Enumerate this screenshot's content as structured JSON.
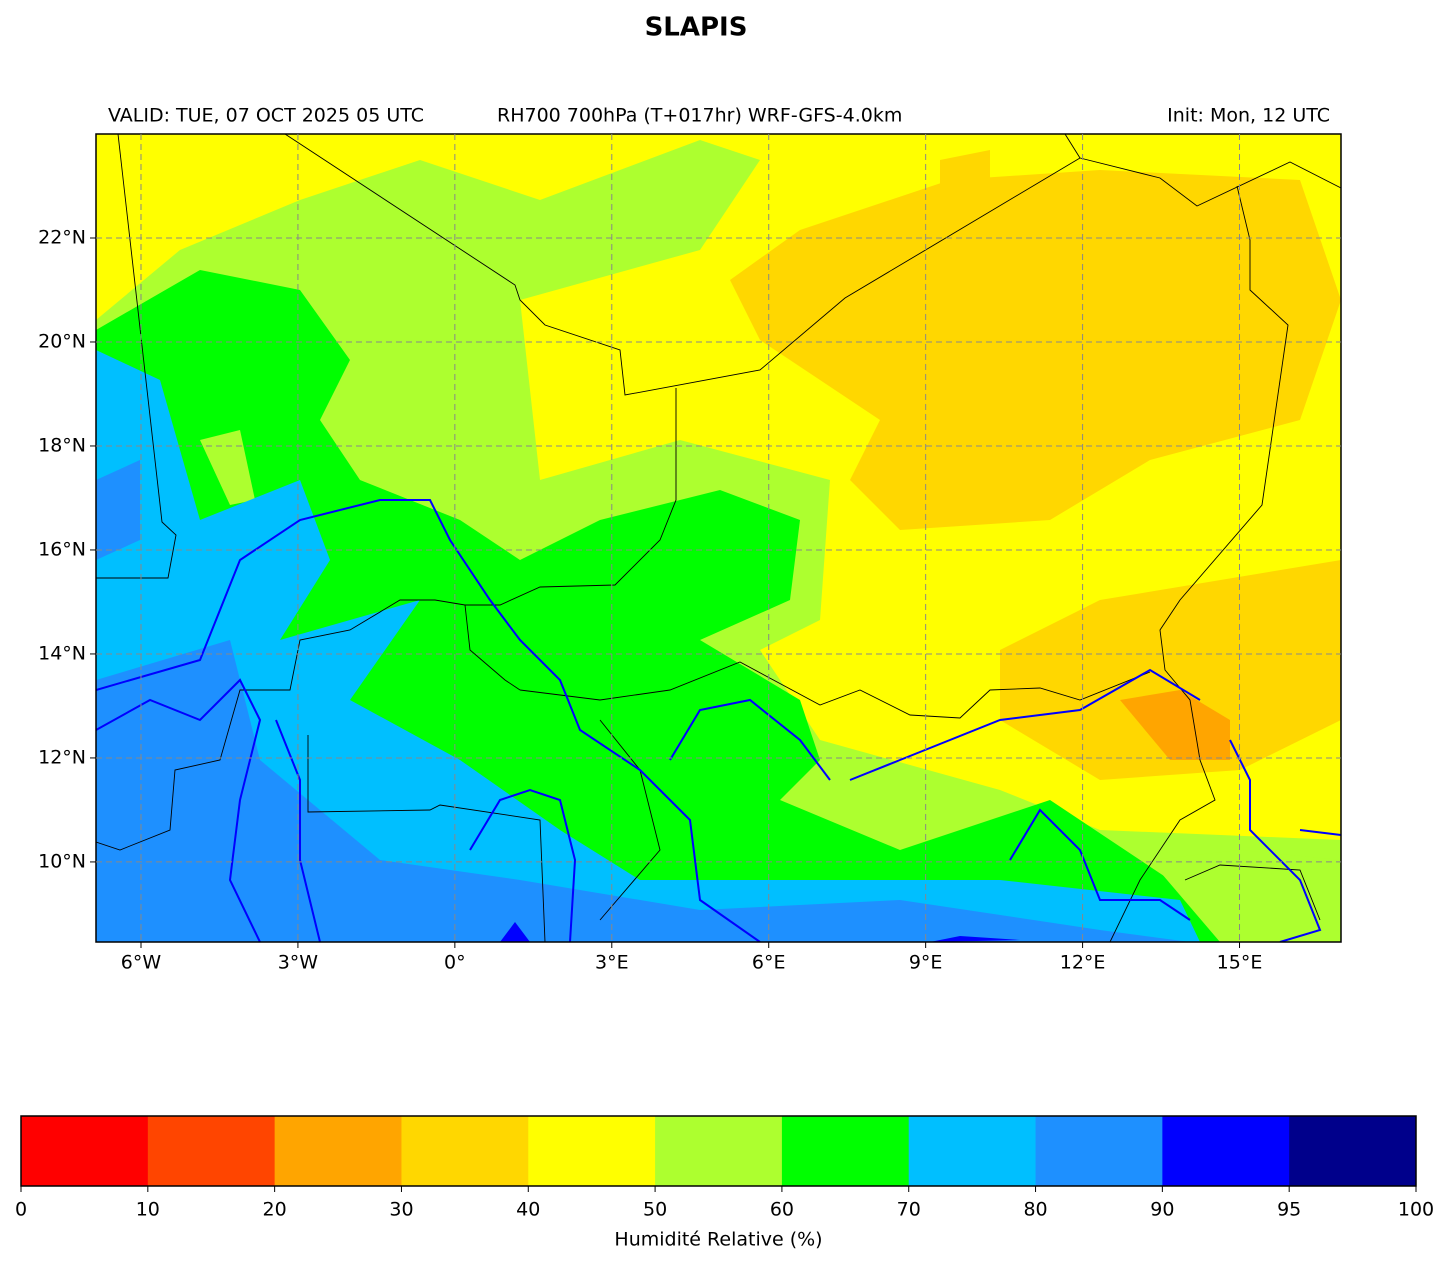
{
  "title": "SLAPIS",
  "map": {
    "valid": "VALID: TUE, 07 OCT 2025 05 UTC",
    "product": "RH700 700hPa (T+017hr) WRF-GFS-4.0km",
    "init": "Init: Mon, 12 UTC",
    "xlim": [
      -6.86,
      16.94
    ],
    "ylim": [
      8.46,
      24.0
    ],
    "xticks": [
      {
        "value": -6,
        "label": "6°W"
      },
      {
        "value": -3,
        "label": "3°W"
      },
      {
        "value": 0,
        "label": "0°"
      },
      {
        "value": 3,
        "label": "3°E"
      },
      {
        "value": 6,
        "label": "6°E"
      },
      {
        "value": 9,
        "label": "9°E"
      },
      {
        "value": 12,
        "label": "12°E"
      },
      {
        "value": 15,
        "label": "15°E"
      }
    ],
    "yticks": [
      {
        "value": 10,
        "label": "10°N"
      },
      {
        "value": 12,
        "label": "12°N"
      },
      {
        "value": 14,
        "label": "14°N"
      },
      {
        "value": 16,
        "label": "16°N"
      },
      {
        "value": 18,
        "label": "18°N"
      },
      {
        "value": 20,
        "label": "20°N"
      },
      {
        "value": 22,
        "label": "22°N"
      }
    ]
  },
  "colorbar": {
    "boundaries": [
      0,
      10,
      20,
      30,
      40,
      50,
      60,
      70,
      80,
      90,
      95,
      100
    ],
    "colors": [
      "#ff0000",
      "#ff4500",
      "#ffa500",
      "#ffd700",
      "#ffff00",
      "#adff2f",
      "#00ff00",
      "#00bfff",
      "#1e90ff",
      "#0000ff",
      "#00008b"
    ],
    "label": "Humidité Relative (%)"
  }
}
